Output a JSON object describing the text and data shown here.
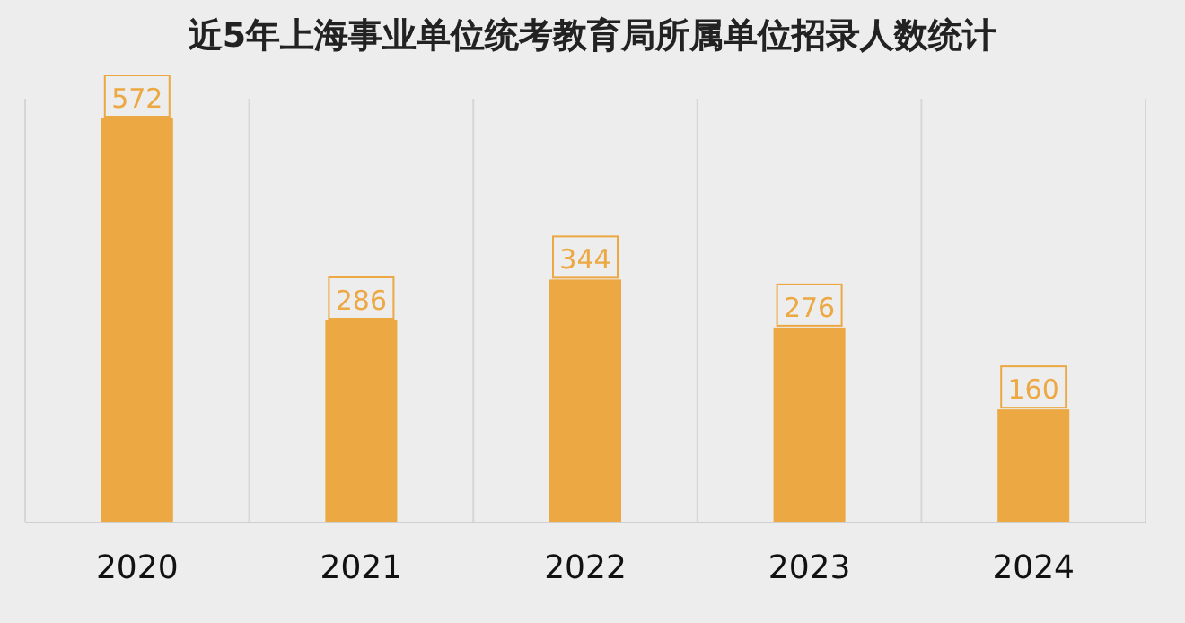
{
  "chart_data": {
    "type": "bar",
    "title": "近5年上海事业单位统考教育局所属单位招录人数统计",
    "categories": [
      "2020",
      "2021",
      "2022",
      "2023",
      "2024"
    ],
    "values": [
      572,
      286,
      344,
      276,
      160
    ],
    "color": "#eca843",
    "data_labels": true,
    "grid": "x"
  }
}
